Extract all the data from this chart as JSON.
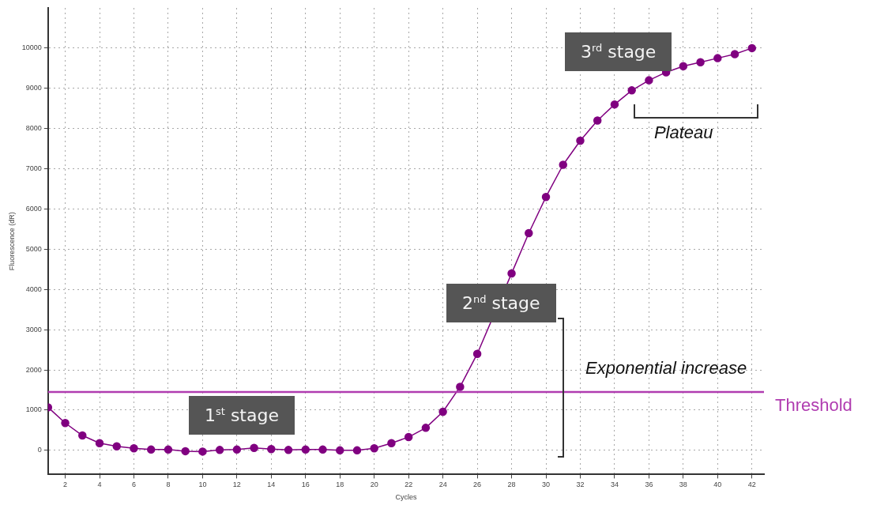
{
  "chart_data": {
    "type": "line",
    "xlabel": "Cycles",
    "ylabel": "Fluorescence (dR)",
    "x": [
      1,
      2,
      3,
      4,
      5,
      6,
      7,
      8,
      9,
      10,
      11,
      12,
      13,
      14,
      15,
      16,
      17,
      18,
      19,
      20,
      21,
      22,
      23,
      24,
      25,
      26,
      27,
      28,
      29,
      30,
      31,
      32,
      33,
      34,
      35,
      36,
      37,
      38,
      39,
      40,
      41,
      42
    ],
    "series": [
      {
        "color": "#800080",
        "values": [
          1070,
          680,
          370,
          180,
          100,
          50,
          20,
          20,
          -20,
          -30,
          10,
          20,
          60,
          30,
          10,
          20,
          20,
          0,
          0,
          50,
          180,
          330,
          560,
          960,
          1580,
          2400,
          null,
          4400,
          5400,
          6300,
          7100,
          7700,
          8200,
          8600,
          8950,
          9200,
          9400,
          9550,
          9650,
          9750,
          9850,
          10000
        ]
      }
    ],
    "xlim": [
      1,
      42.7
    ],
    "xticks": [
      2,
      4,
      6,
      8,
      10,
      12,
      14,
      16,
      18,
      20,
      22,
      24,
      26,
      28,
      30,
      32,
      34,
      36,
      38,
      40,
      42
    ],
    "ylim": [
      -600,
      11000
    ],
    "yticks": [
      0,
      1000,
      2000,
      3000,
      4000,
      5000,
      6000,
      7000,
      8000,
      9000,
      10000
    ],
    "grid": true,
    "marker": "circle",
    "line_style": "solid",
    "legend": false,
    "ref_lines": [
      {
        "axis": "y",
        "value": 1450,
        "label": "Threshold",
        "color": "#b03cb0"
      }
    ],
    "annotations": [
      "1$^{st}$ stage",
      "2$^{nd}$ stage",
      "3$^{rd}$ stage",
      "Exponential increase",
      "Plateau"
    ]
  }
}
